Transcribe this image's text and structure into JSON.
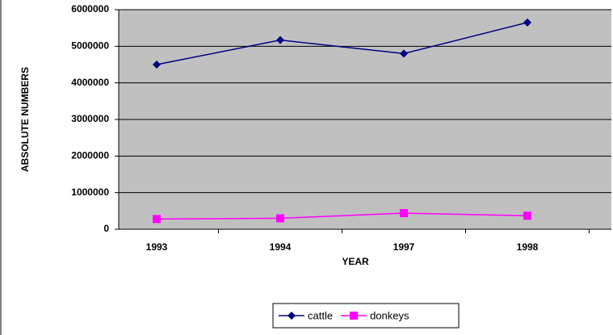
{
  "chart_data": {
    "type": "line",
    "x_label": "YEAR",
    "y_label": "ABSOLUTE NUMBERS",
    "categories": [
      "1993",
      "1994",
      "1997",
      "1998"
    ],
    "series": [
      {
        "name": "cattle",
        "color": "#000080",
        "marker": "diamond",
        "values": [
          4500000,
          5170000,
          4800000,
          5650000
        ]
      },
      {
        "name": "donkeys",
        "color": "#ff00ff",
        "marker": "square",
        "values": [
          280000,
          300000,
          440000,
          370000
        ]
      }
    ],
    "ylim": [
      0,
      6000000
    ],
    "yticks": [
      0,
      1000000,
      2000000,
      3000000,
      4000000,
      5000000,
      6000000
    ],
    "grid": true,
    "legend": "bottom"
  }
}
